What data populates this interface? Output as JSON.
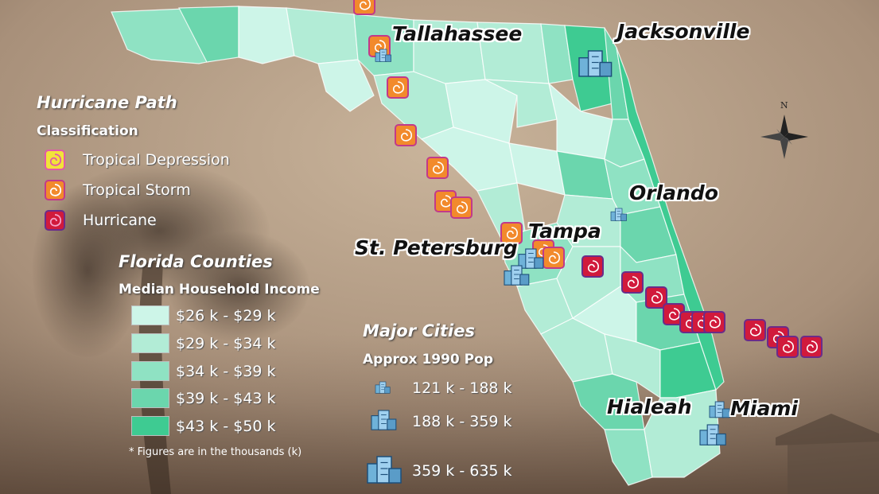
{
  "hurricane_legend": {
    "title": "Hurricane Path",
    "subtitle": "Classification",
    "items": [
      {
        "label": "Tropical Depression",
        "icon": "tropical-depression-icon",
        "color": "#f2e33a"
      },
      {
        "label": "Tropical Storm",
        "icon": "tropical-storm-icon",
        "color": "#f28a2c"
      },
      {
        "label": "Hurricane",
        "icon": "hurricane-icon",
        "color": "#d11a3c"
      }
    ]
  },
  "county_legend": {
    "title": "Florida Counties",
    "subtitle": "Median Household Income",
    "items": [
      {
        "label": "$26 k - $29 k",
        "color": "#cdf5e8"
      },
      {
        "label": "$29 k - $34 k",
        "color": "#b2ecd6"
      },
      {
        "label": "$34 k - $39 k",
        "color": "#8fe2c3"
      },
      {
        "label": "$39 k - $43 k",
        "color": "#6bd6ad"
      },
      {
        "label": "$43 k - $50 k",
        "color": "#3ecb92"
      }
    ],
    "note": "* Figures are in the thousands (k)"
  },
  "city_legend": {
    "title": "Major Cities",
    "subtitle": "Approx 1990 Pop",
    "items": [
      {
        "label": "121 k - 188 k",
        "icon": "small-building-icon"
      },
      {
        "label": "188 k - 359 k",
        "icon": "medium-building-icon"
      },
      {
        "label": "359 k - 635 k",
        "icon": "large-building-icon"
      }
    ]
  },
  "cities": [
    "Tallahassee",
    "Jacksonville",
    "Orlando",
    "Tampa",
    "St. Petersburg",
    "Hialeah",
    "Miami"
  ],
  "north_arrow": "N"
}
